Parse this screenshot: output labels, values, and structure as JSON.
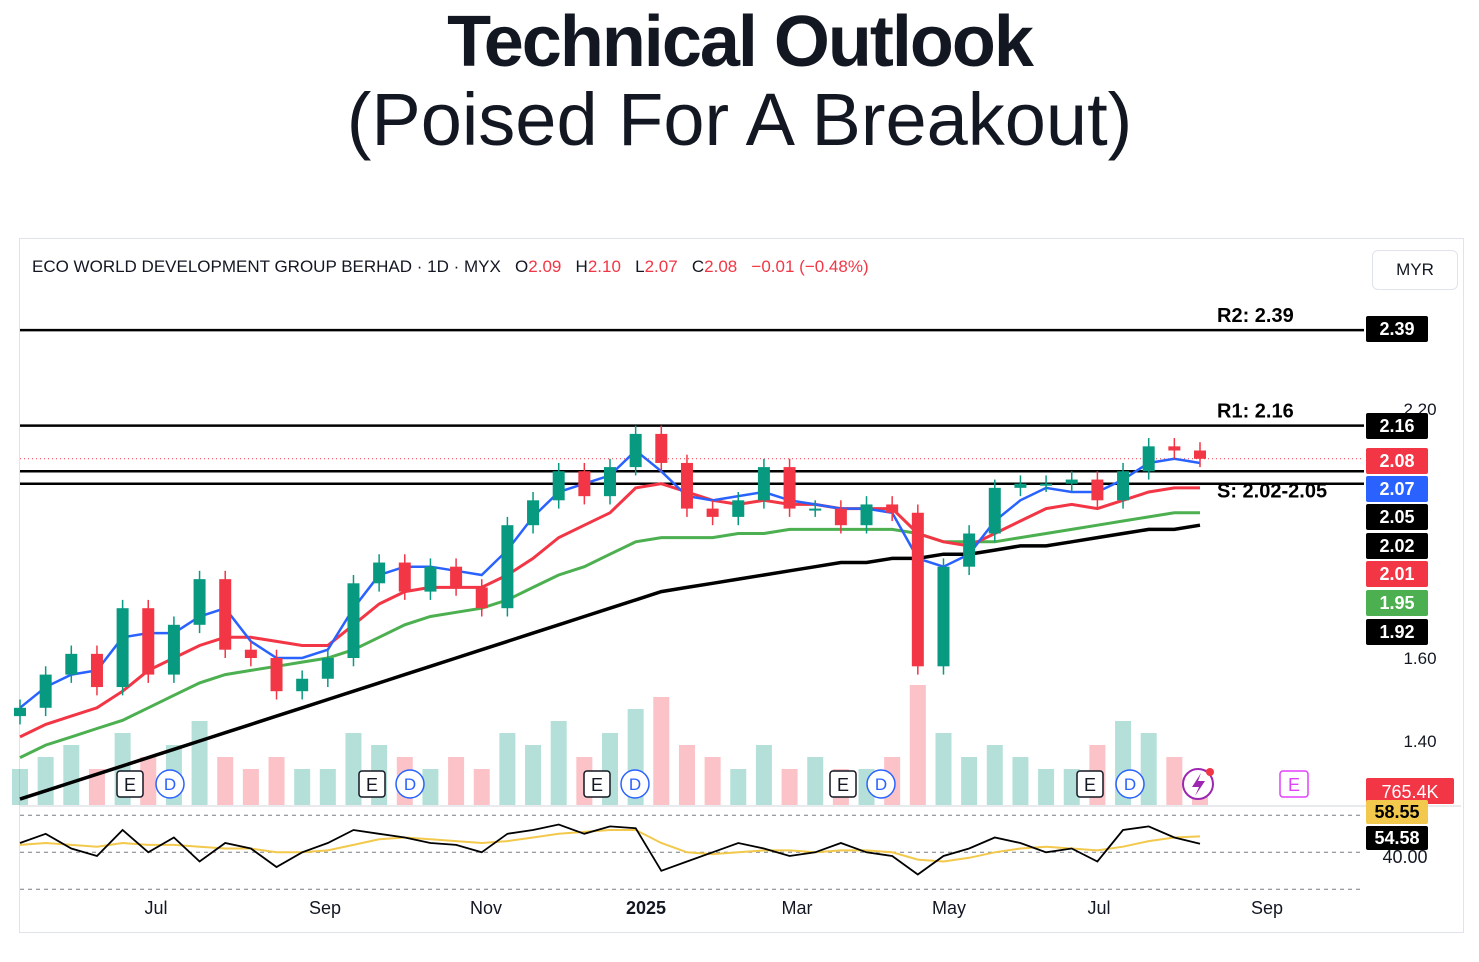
{
  "header": {
    "title": "Technical Outlook",
    "subtitle": "(Poised For A Breakout)"
  },
  "legend": {
    "symbol": "ECO WORLD DEVELOPMENT GROUP BERHAD · 1D · MYX",
    "open_label": "O",
    "open": "2.09",
    "high_label": "H",
    "high": "2.10",
    "low_label": "L",
    "low": "2.07",
    "close_label": "C",
    "close": "2.08",
    "change": "−0.01 (−0.48%)"
  },
  "currency_button": "MYR",
  "colors": {
    "up": "#089981",
    "down": "#f23645",
    "ema_fast": "#2962ff",
    "ema_mid": "#f23645",
    "ema_slow": "#4caf50",
    "ema_long": "#000000",
    "rsi_ma": "#f2c94c"
  },
  "chart_data": {
    "type": "line",
    "title": "",
    "price_axis_ticks": [
      "2.20",
      "1.60",
      "1.40"
    ],
    "time_axis_labels": [
      "Jul",
      "Sep",
      "Nov",
      "2025",
      "Mar",
      "May",
      "Jul",
      "Sep"
    ],
    "levels": [
      {
        "label": "R2: 2.39",
        "value": 2.39
      },
      {
        "label": "R1: 2.16",
        "value": 2.16
      },
      {
        "label": "S: 2.02-2.05",
        "low": 2.02,
        "high": 2.05
      }
    ],
    "price_tags": [
      {
        "text": "2.39",
        "color": "#000000"
      },
      {
        "text": "2.16",
        "color": "#000000"
      },
      {
        "text": "2.08",
        "color": "#f23645"
      },
      {
        "text": "2.07",
        "color": "#2962ff"
      },
      {
        "text": "2.05",
        "color": "#000000"
      },
      {
        "text": "2.02",
        "color": "#000000"
      },
      {
        "text": "2.01",
        "color": "#f23645"
      },
      {
        "text": "1.95",
        "color": "#4caf50"
      },
      {
        "text": "1.92",
        "color": "#000000"
      }
    ],
    "volume_tag": "765.4K",
    "rsi": {
      "ticks": [
        "40.00"
      ],
      "value_tags": [
        "58.55",
        "54.58"
      ]
    },
    "event_markers": [
      "E",
      "D",
      "E",
      "D",
      "E",
      "D",
      "E",
      "D",
      "E",
      "D"
    ],
    "upcoming_markers": [
      "lightning",
      "E"
    ],
    "series": [
      {
        "name": "Price",
        "values": [
          1.48,
          1.56,
          1.61,
          1.53,
          1.72,
          1.56,
          1.68,
          1.79,
          1.62,
          1.6,
          1.52,
          1.55,
          1.6,
          1.78,
          1.83,
          1.76,
          1.82,
          1.77,
          1.72,
          1.92,
          1.98,
          2.05,
          1.99,
          2.06,
          2.14,
          2.07,
          1.96,
          1.94,
          1.98,
          2.06,
          1.96,
          1.96,
          1.92,
          1.97,
          1.95,
          1.58,
          1.82,
          1.9,
          2.01,
          2.02,
          2.02,
          2.03,
          1.98,
          2.05,
          2.11,
          2.1,
          2.08
        ]
      },
      {
        "name": "EMA 20",
        "values": [
          1.48,
          1.53,
          1.56,
          1.57,
          1.65,
          1.66,
          1.66,
          1.7,
          1.72,
          1.64,
          1.6,
          1.6,
          1.62,
          1.72,
          1.8,
          1.82,
          1.82,
          1.81,
          1.8,
          1.86,
          1.94,
          2.0,
          2.02,
          2.04,
          2.1,
          2.05,
          1.99,
          1.98,
          1.99,
          2.0,
          1.98,
          1.97,
          1.96,
          1.96,
          1.95,
          1.84,
          1.82,
          1.85,
          1.93,
          1.98,
          2.01,
          2.0,
          2.0,
          2.03,
          2.07,
          2.08,
          2.07
        ]
      },
      {
        "name": "EMA 50",
        "values": [
          1.41,
          1.44,
          1.46,
          1.48,
          1.52,
          1.57,
          1.6,
          1.63,
          1.65,
          1.65,
          1.64,
          1.63,
          1.63,
          1.68,
          1.73,
          1.76,
          1.77,
          1.77,
          1.77,
          1.8,
          1.84,
          1.89,
          1.92,
          1.95,
          2.01,
          2.02,
          2.0,
          1.98,
          1.97,
          1.98,
          1.97,
          1.97,
          1.96,
          1.96,
          1.96,
          1.9,
          1.88,
          1.87,
          1.9,
          1.93,
          1.96,
          1.97,
          1.96,
          1.98,
          2.0,
          2.01,
          2.01
        ]
      },
      {
        "name": "EMA 100",
        "values": [
          1.36,
          1.39,
          1.41,
          1.43,
          1.45,
          1.48,
          1.51,
          1.54,
          1.56,
          1.57,
          1.58,
          1.59,
          1.6,
          1.62,
          1.65,
          1.68,
          1.7,
          1.71,
          1.72,
          1.74,
          1.77,
          1.8,
          1.82,
          1.85,
          1.88,
          1.89,
          1.89,
          1.89,
          1.9,
          1.9,
          1.91,
          1.91,
          1.91,
          1.91,
          1.91,
          1.9,
          1.88,
          1.88,
          1.88,
          1.89,
          1.9,
          1.91,
          1.92,
          1.93,
          1.94,
          1.95,
          1.95
        ]
      },
      {
        "name": "EMA 200",
        "values": [
          1.26,
          1.28,
          1.3,
          1.32,
          1.34,
          1.36,
          1.38,
          1.4,
          1.42,
          1.44,
          1.46,
          1.48,
          1.5,
          1.52,
          1.54,
          1.56,
          1.58,
          1.6,
          1.62,
          1.64,
          1.66,
          1.68,
          1.7,
          1.72,
          1.74,
          1.76,
          1.77,
          1.78,
          1.79,
          1.8,
          1.81,
          1.82,
          1.83,
          1.83,
          1.84,
          1.84,
          1.85,
          1.85,
          1.86,
          1.87,
          1.87,
          1.88,
          1.89,
          1.9,
          1.91,
          1.91,
          1.92
        ]
      },
      {
        "name": "RSI",
        "values": [
          55,
          60,
          52,
          48,
          62,
          50,
          58,
          45,
          55,
          52,
          42,
          50,
          55,
          62,
          60,
          58,
          55,
          54,
          50,
          60,
          62,
          65,
          60,
          64,
          63,
          40,
          45,
          50,
          55,
          52,
          48,
          50,
          55,
          50,
          48,
          38,
          48,
          52,
          58,
          55,
          50,
          52,
          45,
          62,
          64,
          58,
          54.58
        ]
      },
      {
        "name": "RSI MA",
        "values": [
          54,
          55,
          54,
          53,
          55,
          54,
          54,
          53,
          52,
          52,
          50,
          50,
          51,
          54,
          57,
          58,
          57,
          56,
          55,
          56,
          58,
          60,
          61,
          62,
          62,
          55,
          50,
          49,
          50,
          51,
          51,
          50,
          51,
          51,
          50,
          46,
          45,
          47,
          50,
          52,
          53,
          52,
          51,
          53,
          56,
          58,
          58.55
        ]
      },
      {
        "name": "Volume",
        "values": [
          0.3,
          0.4,
          0.5,
          0.3,
          0.6,
          0.4,
          0.5,
          0.7,
          0.4,
          0.3,
          0.4,
          0.3,
          0.3,
          0.6,
          0.5,
          0.4,
          0.3,
          0.4,
          0.3,
          0.6,
          0.5,
          0.7,
          0.4,
          0.6,
          0.8,
          0.9,
          0.5,
          0.4,
          0.3,
          0.5,
          0.3,
          0.4,
          0.3,
          0.3,
          0.4,
          1.0,
          0.6,
          0.4,
          0.5,
          0.4,
          0.3,
          0.3,
          0.5,
          0.7,
          0.6,
          0.4,
          0.3
        ]
      }
    ]
  }
}
